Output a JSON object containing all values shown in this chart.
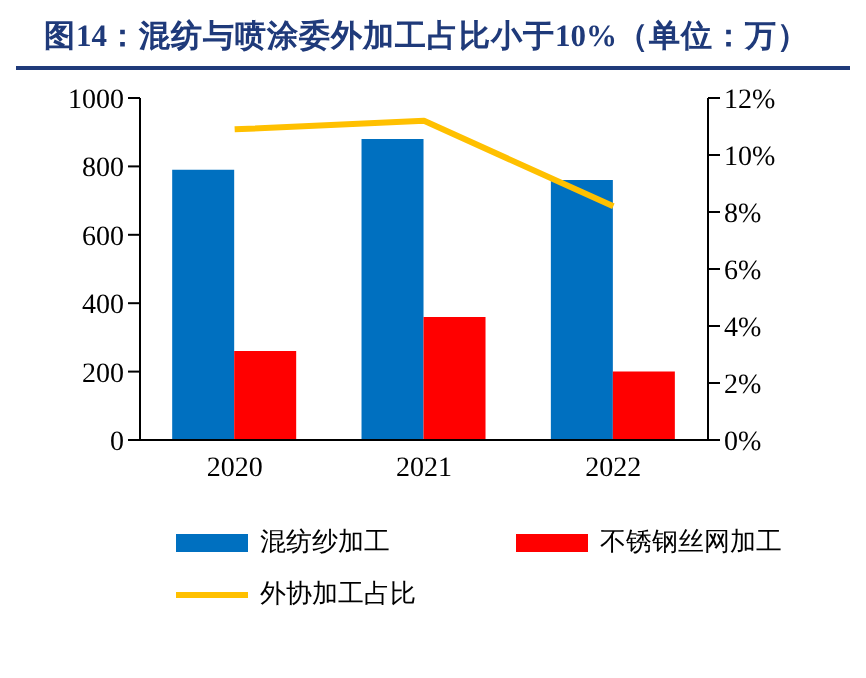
{
  "chart_data": {
    "type": "bar",
    "title": "图14：混纺与喷涂委外加工占比小于10%（单位：万）",
    "categories": [
      "2020",
      "2021",
      "2022"
    ],
    "series": [
      {
        "name": "混纺纱加工",
        "color": "#0070c0",
        "values": [
          790,
          880,
          760
        ]
      },
      {
        "name": "不锈钢丝网加工",
        "color": "#ff0000",
        "values": [
          260,
          360,
          200
        ]
      },
      {
        "name": "外协加工占比",
        "type": "line",
        "axis": "y2",
        "color": "#ffc000",
        "values": [
          10.9,
          11.2,
          8.2
        ],
        "marker": "none"
      }
    ],
    "ylim": [
      0,
      1000
    ],
    "yticks": [
      0,
      200,
      400,
      600,
      800,
      1000
    ],
    "y2lim": [
      0,
      12
    ],
    "y2ticks": [
      {
        "value": 0,
        "label": "0%"
      },
      {
        "value": 2,
        "label": "2%"
      },
      {
        "value": 4,
        "label": "4%"
      },
      {
        "value": 6,
        "label": "6%"
      },
      {
        "value": 8,
        "label": "8%"
      },
      {
        "value": 10,
        "label": "10%"
      },
      {
        "value": 12,
        "label": "12%"
      }
    ],
    "grid": false,
    "legend": "bottom"
  }
}
